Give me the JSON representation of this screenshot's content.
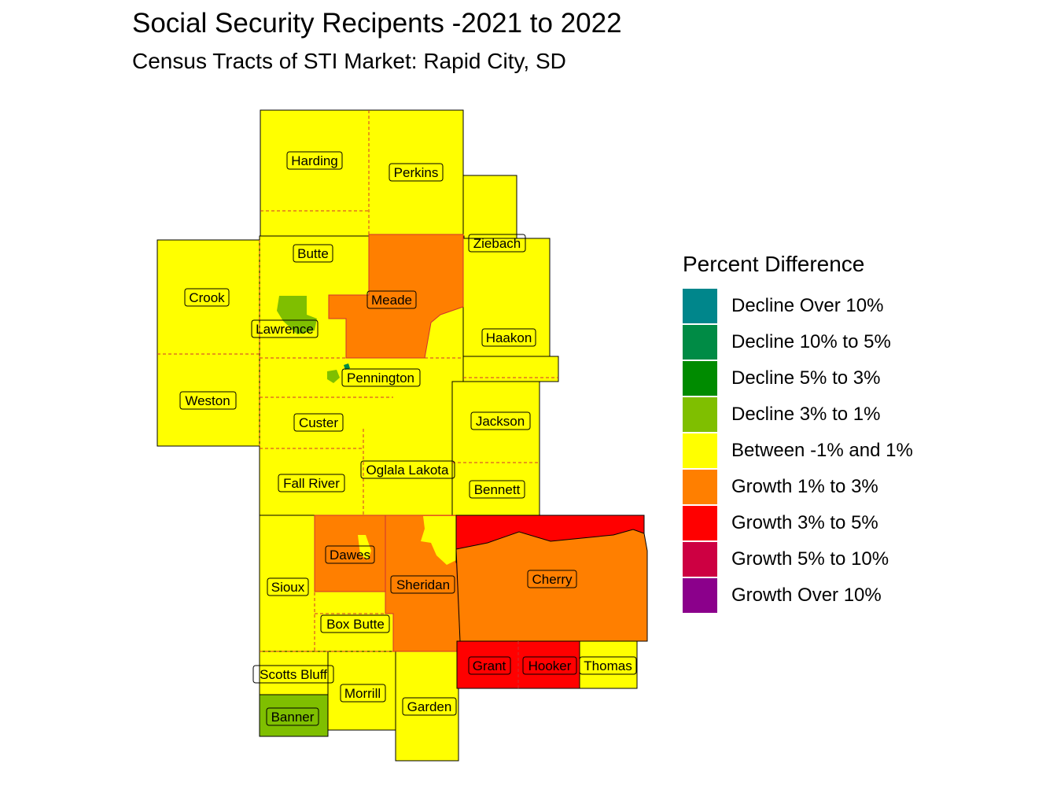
{
  "title": "Social Security Recipents -2021 to 2022",
  "subtitle": "Census Tracts of STI Market: Rapid City, SD",
  "legend": {
    "title": "Percent Difference",
    "items": [
      {
        "label": "Decline Over 10%",
        "color": "#00868B"
      },
      {
        "label": "Decline 10% to 5%",
        "color": "#008B45"
      },
      {
        "label": "Decline 5% to 3%",
        "color": "#008B00"
      },
      {
        "label": "Decline 3% to 1%",
        "color": "#7FBF00"
      },
      {
        "label": "Between -1% and 1%",
        "color": "#FFFF00"
      },
      {
        "label": "Growth 1% to 3%",
        "color": "#FF7F00"
      },
      {
        "label": "Growth 3% to 5%",
        "color": "#FF0000"
      },
      {
        "label": "Growth 5% to 10%",
        "color": "#CD0042"
      },
      {
        "label": "Growth Over 10%",
        "color": "#8B008B"
      }
    ]
  },
  "counties": {
    "harding": "Harding",
    "perkins": "Perkins",
    "ziebach": "Ziebach",
    "butte": "Butte",
    "crook": "Crook",
    "meade": "Meade",
    "lawrence": "Lawrence",
    "haakon": "Haakon",
    "pennington": "Pennington",
    "weston": "Weston",
    "custer": "Custer",
    "jackson": "Jackson",
    "oglala": "Oglala Lakota",
    "fallriver": "Fall River",
    "bennett": "Bennett",
    "dawes": "Dawes",
    "sheridan": "Sheridan",
    "cherry": "Cherry",
    "sioux": "Sioux",
    "boxbutte": "Box Butte",
    "scottsbluff": "Scotts Bluff",
    "grant": "Grant",
    "hooker": "Hooker",
    "thomas": "Thomas",
    "morrill": "Morrill",
    "garden": "Garden",
    "banner": "Banner"
  }
}
